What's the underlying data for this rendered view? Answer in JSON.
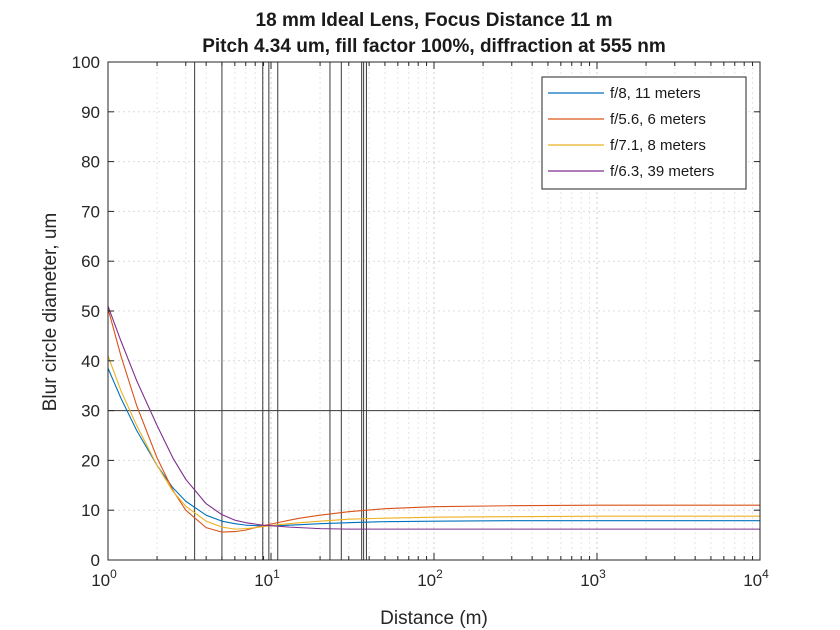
{
  "chart_data": {
    "type": "line",
    "title": "18 mm Ideal Lens, Focus Distance 11 m",
    "subtitle": "Pitch 4.34 um, fill factor 100%, diffraction at 555 nm",
    "xlabel": "Distance (m)",
    "ylabel": "Blur circle diameter, um",
    "xscale": "log",
    "xlim": [
      1,
      10000
    ],
    "ylim": [
      0,
      100
    ],
    "xtick_labels": [
      {
        "base": "10",
        "exp": "0"
      },
      {
        "base": "10",
        "exp": "1"
      },
      {
        "base": "10",
        "exp": "2"
      },
      {
        "base": "10",
        "exp": "3"
      },
      {
        "base": "10",
        "exp": "4"
      }
    ],
    "yticks": [
      0,
      10,
      20,
      30,
      40,
      50,
      60,
      70,
      80,
      90,
      100
    ],
    "grid": true,
    "legend_position": "top-right",
    "reference_hline": 30,
    "reference_vlines": [
      3.4,
      5.0,
      8.9,
      9.7,
      11.0,
      23,
      27,
      36,
      37,
      38.5
    ],
    "series": [
      {
        "name": "f/8, 11 meters",
        "color": "#0072BD",
        "x": [
          1,
          1.2,
          1.5,
          2,
          2.5,
          3,
          4,
          5,
          6,
          7,
          8,
          9,
          10,
          11,
          13,
          15,
          20,
          30,
          50,
          100,
          300,
          1000,
          3000,
          10000
        ],
        "y": [
          38.5,
          32.5,
          26,
          19,
          14.5,
          11.8,
          9.0,
          7.8,
          7.3,
          7.0,
          6.9,
          6.9,
          6.9,
          6.9,
          7.0,
          7.1,
          7.3,
          7.5,
          7.7,
          7.8,
          7.9,
          7.9,
          7.9,
          7.9
        ]
      },
      {
        "name": "f/5.6, 6 meters",
        "color": "#D95319",
        "x": [
          1,
          1.2,
          1.5,
          2,
          2.5,
          3,
          4,
          5,
          6,
          7,
          8,
          9,
          10,
          11,
          13,
          15,
          20,
          30,
          50,
          100,
          300,
          1000,
          3000,
          10000
        ],
        "y": [
          50.5,
          41,
          31,
          20.5,
          14.0,
          10.0,
          6.5,
          5.6,
          5.7,
          6.0,
          6.5,
          6.9,
          7.2,
          7.5,
          8.0,
          8.4,
          9.0,
          9.7,
          10.3,
          10.7,
          10.9,
          11.0,
          11.0,
          11.0
        ]
      },
      {
        "name": "f/7.1, 8 meters",
        "color": "#EDB120",
        "x": [
          1,
          1.2,
          1.5,
          2,
          2.5,
          3,
          4,
          5,
          6,
          7,
          8,
          9,
          10,
          11,
          13,
          15,
          20,
          30,
          50,
          100,
          300,
          1000,
          3000,
          10000
        ],
        "y": [
          41,
          34,
          27,
          19,
          13.8,
          10.8,
          7.8,
          6.6,
          6.2,
          6.3,
          6.5,
          6.7,
          6.9,
          7.1,
          7.3,
          7.5,
          7.8,
          8.2,
          8.4,
          8.6,
          8.7,
          8.8,
          8.8,
          8.8
        ]
      },
      {
        "name": "f/6.3, 39 meters",
        "color": "#7E2F8E",
        "x": [
          1,
          1.2,
          1.5,
          2,
          2.5,
          3,
          4,
          5,
          6,
          7,
          8,
          9,
          10,
          11,
          13,
          15,
          20,
          30,
          50,
          100,
          300,
          1000,
          3000,
          10000
        ],
        "y": [
          51,
          44,
          36,
          27,
          20.5,
          16.2,
          11.3,
          9.1,
          8.0,
          7.5,
          7.2,
          7.0,
          6.9,
          6.8,
          6.6,
          6.5,
          6.3,
          6.2,
          6.2,
          6.2,
          6.2,
          6.2,
          6.2,
          6.2
        ]
      }
    ]
  }
}
